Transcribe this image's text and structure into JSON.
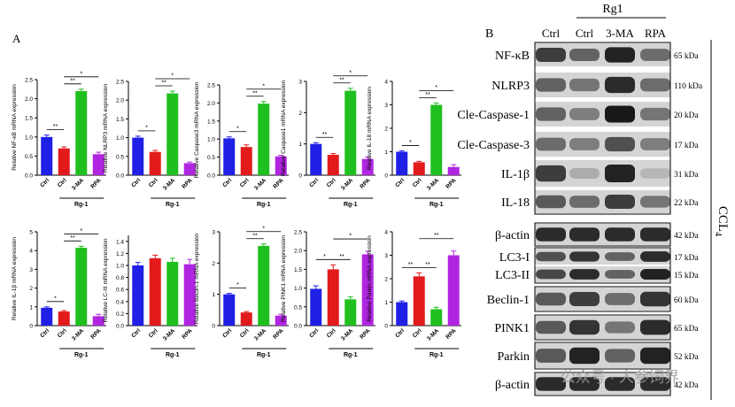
{
  "panel_a_label": "A",
  "panel_b_label": "B",
  "colors": {
    "ctrl": "#1f1fe6",
    "rg1": "#e31a1c",
    "ma": "#1fbf1f",
    "rpa": "#b026e0"
  },
  "chart_data": [
    {
      "type": "bar",
      "ylabel": "Relative NF-κB mRNA expression",
      "ylim": [
        0,
        2.5
      ],
      "yticks": [
        0,
        0.5,
        1.0,
        1.5,
        2.0,
        2.5
      ],
      "tick_labels": [
        "0.0",
        "0.5",
        "1.0",
        "1.5",
        "2.0",
        "2.5"
      ],
      "categories": [
        "Ctrl",
        "Ctrl",
        "3-MA",
        "RPA"
      ],
      "group_label": "Rg-1",
      "values": [
        1.0,
        0.7,
        2.2,
        0.55
      ],
      "errors": [
        0.05,
        0.04,
        0.05,
        0.05
      ],
      "sig": [
        {
          "a": 0,
          "b": 1,
          "label": "**"
        },
        {
          "a": 1,
          "b": 2,
          "label": "**"
        },
        {
          "a": 1,
          "b": 3,
          "label": "*"
        }
      ]
    },
    {
      "type": "bar",
      "ylabel": "Relative NLRP3 mRNA expression",
      "ylim": [
        0,
        2.5
      ],
      "yticks": [
        0,
        0.5,
        1.0,
        1.5,
        2.0,
        2.5
      ],
      "tick_labels": [
        "0.0",
        "0.5",
        "1.0",
        "1.5",
        "2.0",
        "2.5"
      ],
      "categories": [
        "Ctrl",
        "Ctrl",
        "3-MA",
        "RPA"
      ],
      "group_label": "Rg-1",
      "values": [
        1.0,
        0.62,
        2.18,
        0.32
      ],
      "errors": [
        0.04,
        0.04,
        0.06,
        0.03
      ],
      "sig": [
        {
          "a": 0,
          "b": 1,
          "label": "*"
        },
        {
          "a": 1,
          "b": 2,
          "label": "**"
        },
        {
          "a": 1,
          "b": 3,
          "label": "*"
        }
      ]
    },
    {
      "type": "bar",
      "ylabel": "Relative Caspase3 mRNA expression",
      "ylim": [
        0,
        2.5
      ],
      "yticks": [
        0,
        0.5,
        1.0,
        1.5,
        2.0,
        2.5
      ],
      "tick_labels": [
        "0.0",
        "0.5",
        "1.0",
        "1.5",
        "2.0",
        "2.5"
      ],
      "categories": [
        "Ctrl",
        "Ctrl",
        "3-MA",
        "RPA"
      ],
      "group_label": "Rg-1",
      "values": [
        1.02,
        0.78,
        1.98,
        0.52
      ],
      "errors": [
        0.04,
        0.06,
        0.06,
        0.03
      ],
      "sig": [
        {
          "a": 0,
          "b": 1,
          "label": "*"
        },
        {
          "a": 1,
          "b": 2,
          "label": "**"
        },
        {
          "a": 1,
          "b": 3,
          "label": "*"
        }
      ]
    },
    {
      "type": "bar",
      "ylabel": "Relative Caspase1 mRNA expression",
      "ylim": [
        0,
        3
      ],
      "yticks": [
        0,
        1,
        2,
        3
      ],
      "tick_labels": [
        "0",
        "1",
        "2",
        "3"
      ],
      "categories": [
        "Ctrl",
        "Ctrl",
        "3-MA",
        "RPA"
      ],
      "group_label": "Rg-1",
      "values": [
        1.0,
        0.65,
        2.7,
        0.52
      ],
      "errors": [
        0.04,
        0.04,
        0.08,
        0.06
      ],
      "sig": [
        {
          "a": 0,
          "b": 1,
          "label": "**"
        },
        {
          "a": 1,
          "b": 2,
          "label": "**"
        },
        {
          "a": 1,
          "b": 3,
          "label": "*"
        }
      ]
    },
    {
      "type": "bar",
      "ylabel": "Relative IL-18 mRNA expression",
      "ylim": [
        0,
        4
      ],
      "yticks": [
        0,
        1,
        2,
        3,
        4
      ],
      "tick_labels": [
        "0",
        "1",
        "2",
        "3",
        "4"
      ],
      "categories": [
        "Ctrl",
        "Ctrl",
        "3-MA",
        "RPA"
      ],
      "group_label": "Rg-1",
      "values": [
        1.0,
        0.55,
        3.0,
        0.35
      ],
      "errors": [
        0.04,
        0.04,
        0.08,
        0.1
      ],
      "sig": [
        {
          "a": 0,
          "b": 1,
          "label": "*"
        },
        {
          "a": 1,
          "b": 2,
          "label": "**"
        },
        {
          "a": 1,
          "b": 3,
          "label": "*"
        }
      ]
    },
    {
      "type": "bar",
      "ylabel": "Relative IL-1β mRNA expression",
      "ylim": [
        0,
        5
      ],
      "yticks": [
        0,
        1,
        2,
        3,
        4,
        5
      ],
      "tick_labels": [
        "0",
        "1",
        "2",
        "3",
        "4",
        "5"
      ],
      "categories": [
        "Ctrl",
        "Ctrl",
        "3-MA",
        "RPA"
      ],
      "group_label": "Rg-1",
      "values": [
        0.95,
        0.75,
        4.15,
        0.5
      ],
      "errors": [
        0.05,
        0.05,
        0.08,
        0.1
      ],
      "sig": [
        {
          "a": 0,
          "b": 1,
          "label": "*"
        },
        {
          "a": 1,
          "b": 2,
          "label": "**"
        },
        {
          "a": 1,
          "b": 3,
          "label": "*"
        }
      ]
    },
    {
      "type": "bar",
      "ylabel": "Relative LC-III mRNA expression",
      "ylim": [
        0,
        1.5
      ],
      "yticks": [
        0,
        0.2,
        0.4,
        0.6,
        0.8,
        1.0,
        1.2,
        1.4
      ],
      "tick_labels": [
        "0.0",
        "0.2",
        "0.4",
        "0.6",
        "0.8",
        "1.0",
        "1.2",
        "1.4"
      ],
      "categories": [
        "Ctrl",
        "Ctrl",
        "3-MA",
        "RPA"
      ],
      "group_label": "Rg-1",
      "values": [
        1.0,
        1.12,
        1.06,
        1.02
      ],
      "errors": [
        0.05,
        0.05,
        0.06,
        0.08
      ],
      "sig": []
    },
    {
      "type": "bar",
      "ylabel": "Relative Beclin-1 mRNA expression",
      "ylim": [
        0,
        3
      ],
      "yticks": [
        0,
        1,
        2,
        3
      ],
      "tick_labels": [
        "0",
        "1",
        "2",
        "3"
      ],
      "categories": [
        "Ctrl",
        "Ctrl",
        "3-MA",
        "RPA"
      ],
      "group_label": "Rg-1",
      "values": [
        1.0,
        0.42,
        2.55,
        0.32
      ],
      "errors": [
        0.03,
        0.03,
        0.06,
        0.04
      ],
      "sig": [
        {
          "a": 0,
          "b": 1,
          "label": "*"
        },
        {
          "a": 1,
          "b": 2,
          "label": "**"
        },
        {
          "a": 1,
          "b": 3,
          "label": "*"
        }
      ]
    },
    {
      "type": "bar",
      "ylabel": "Relative PINK1 mRNA expression",
      "ylim": [
        0,
        2.5
      ],
      "yticks": [
        0,
        0.5,
        1.0,
        1.5,
        2.0,
        2.5
      ],
      "tick_labels": [
        "0.0",
        "0.5",
        "1.0",
        "1.5",
        "2.0",
        "2.5"
      ],
      "categories": [
        "Ctrl",
        "Ctrl",
        "3-MA",
        "RPA"
      ],
      "group_label": "Rg-1",
      "values": [
        0.98,
        1.5,
        0.7,
        1.9
      ],
      "errors": [
        0.08,
        0.12,
        0.07,
        0.08
      ],
      "sig": [
        {
          "a": 0,
          "b": 1,
          "label": "*"
        },
        {
          "a": 1,
          "b": 2,
          "label": "**"
        },
        {
          "a": 1,
          "b": 3,
          "label": "*"
        }
      ]
    },
    {
      "type": "bar",
      "ylabel": "Relative Parkin mRNA expression",
      "ylim": [
        0,
        4
      ],
      "yticks": [
        0,
        1,
        2,
        3,
        4
      ],
      "tick_labels": [
        "0",
        "1",
        "2",
        "3",
        "4"
      ],
      "categories": [
        "Ctrl",
        "Ctrl",
        "3-MA",
        "RPA"
      ],
      "group_label": "Rg-1",
      "values": [
        1.0,
        2.1,
        0.7,
        3.0
      ],
      "errors": [
        0.05,
        0.15,
        0.08,
        0.18
      ],
      "sig": [
        {
          "a": 0,
          "b": 1,
          "label": "**"
        },
        {
          "a": 1,
          "b": 2,
          "label": "**"
        },
        {
          "a": 1,
          "b": 3,
          "label": "**"
        }
      ]
    }
  ],
  "blot": {
    "header_group": "Rg1",
    "columns": [
      "Ctrl",
      "Ctrl",
      "3-MA",
      "RPA"
    ],
    "side_label": "CCL",
    "side_label_sub": "4",
    "rows": [
      {
        "name": "NF-κB",
        "kda": "65 kDa",
        "levels": [
          0.75,
          0.55,
          0.9,
          0.5
        ]
      },
      {
        "name": "NLRP3",
        "kda": "110 kDa",
        "levels": [
          0.55,
          0.45,
          0.85,
          0.5
        ]
      },
      {
        "name": "Cle-Caspase-1",
        "kda": "20 kDa",
        "levels": [
          0.55,
          0.4,
          0.95,
          0.45
        ]
      },
      {
        "name": "Cle-Caspase-3",
        "kda": "17 kDa",
        "levels": [
          0.5,
          0.4,
          0.65,
          0.4
        ]
      },
      {
        "name": "IL-1β",
        "kda": "31 kDa",
        "levels": [
          0.75,
          0.15,
          0.9,
          0.1
        ]
      },
      {
        "name": "IL-18",
        "kda": "22 kDa",
        "levels": [
          0.6,
          0.5,
          0.75,
          0.45
        ]
      },
      {
        "name": "β-actin",
        "kda": "42 kDa",
        "levels": [
          0.85,
          0.85,
          0.85,
          0.85
        ]
      },
      {
        "name": "LC3-I",
        "kda": "17 kDa",
        "levels": [
          0.65,
          0.8,
          0.55,
          0.85
        ]
      },
      {
        "name": "LC3-II",
        "kda": "15 kDa",
        "levels": [
          0.7,
          0.85,
          0.55,
          0.9
        ]
      },
      {
        "name": "Beclin-1",
        "kda": "60 kDa",
        "levels": [
          0.6,
          0.75,
          0.5,
          0.8
        ]
      },
      {
        "name": "PINK1",
        "kda": "65 kDa",
        "levels": [
          0.6,
          0.8,
          0.45,
          0.85
        ]
      },
      {
        "name": "Parkin",
        "kda": "52 kDa",
        "levels": [
          0.6,
          0.9,
          0.55,
          0.9
        ]
      },
      {
        "name": "β-actin",
        "kda": "42 kDa",
        "levels": [
          0.85,
          0.85,
          0.85,
          0.85
        ]
      }
    ]
  },
  "watermark": "公众号 · 人参饲界"
}
